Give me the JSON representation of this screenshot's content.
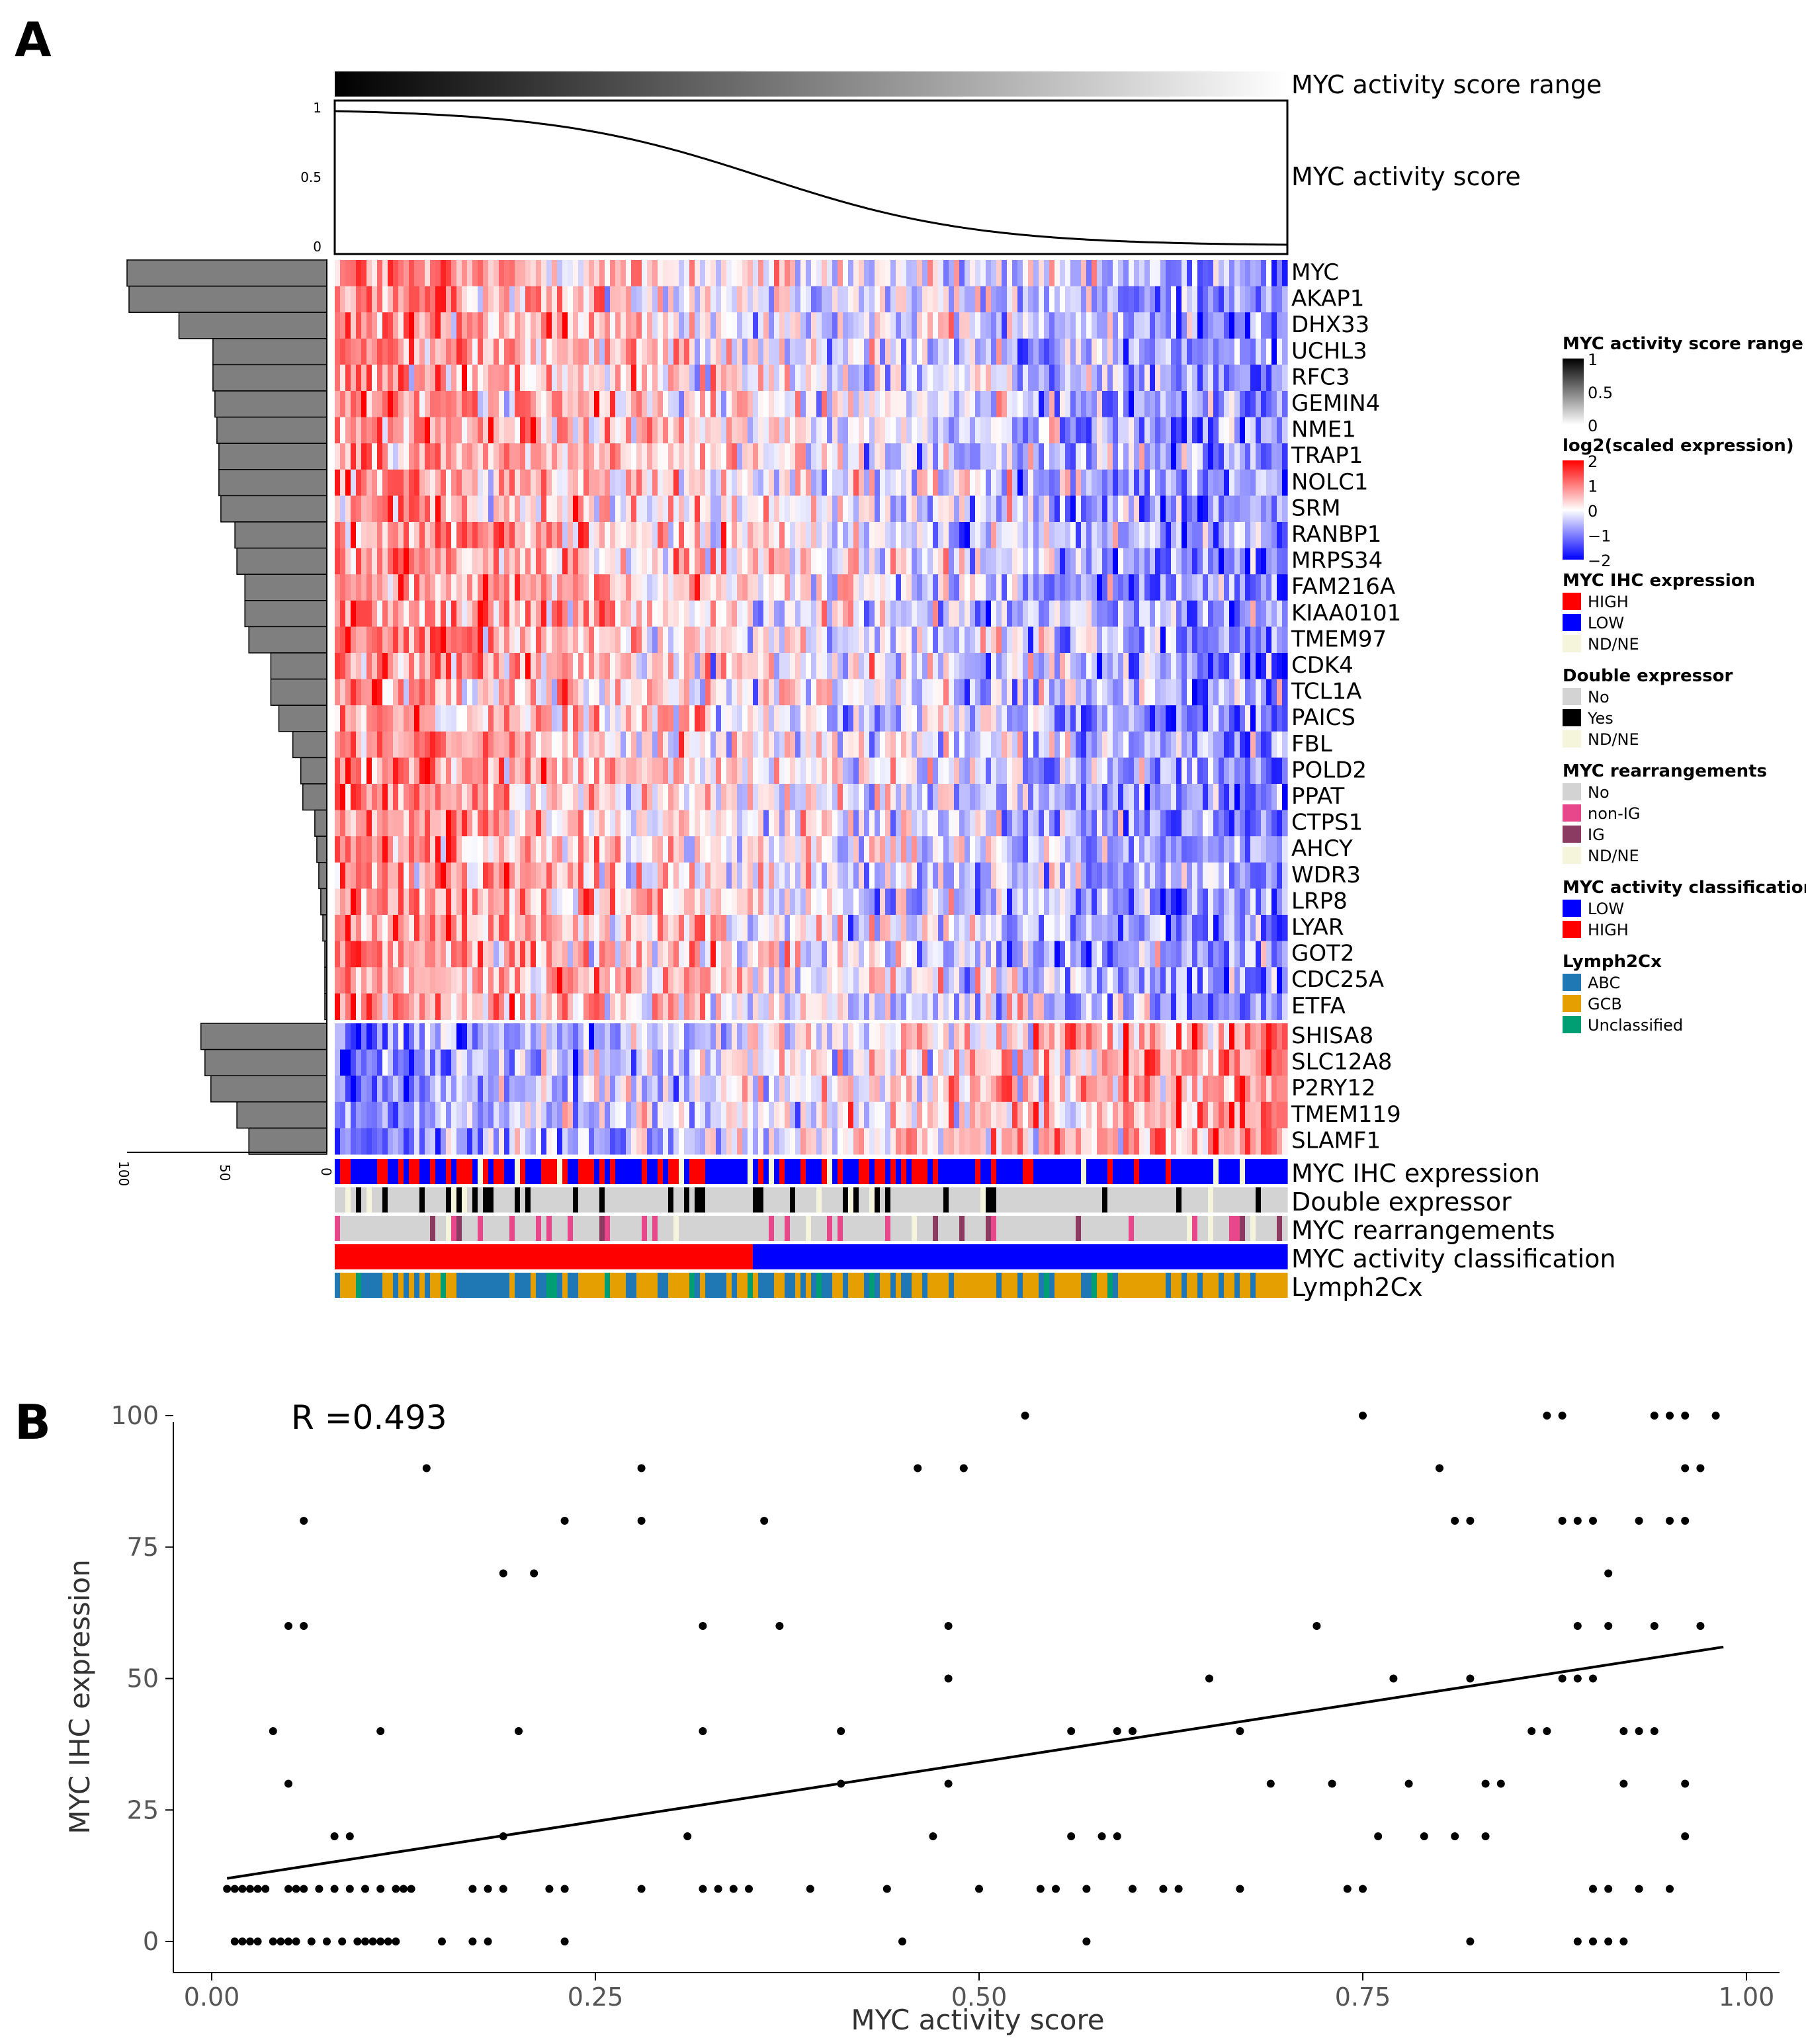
{
  "panels": {
    "a": "A",
    "b": "B"
  },
  "top_track": {
    "range_label": "MYC activity score range",
    "score_label": "MYC activity score",
    "ticks": [
      "1",
      "0.5",
      "0"
    ]
  },
  "genes_up": [
    "MYC",
    "AKAP1",
    "DHX33",
    "UCHL3",
    "RFC3",
    "GEMIN4",
    "NME1",
    "TRAP1",
    "NOLC1",
    "SRM",
    "RANBP1",
    "MRPS34",
    "FAM216A",
    "KIAA0101",
    "TMEM97",
    "CDK4",
    "TCL1A",
    "PAICS",
    "FBL",
    "POLD2",
    "PPAT",
    "CTPS1",
    "AHCY",
    "WDR3",
    "LRP8",
    "LYAR",
    "GOT2",
    "CDC25A",
    "ETFA"
  ],
  "genes_down": [
    "SHISA8",
    "SLC12A8",
    "P2RY12",
    "TMEM119",
    "SLAMF1"
  ],
  "weights_up": [
    100,
    99,
    74,
    57,
    57,
    56,
    55,
    54,
    54,
    53,
    46,
    45,
    41,
    41,
    39,
    28,
    28,
    24,
    17,
    13,
    12,
    6,
    5,
    4,
    3,
    2,
    1,
    1,
    1
  ],
  "weights_down": [
    63,
    61,
    58,
    45,
    39
  ],
  "bar_axis_ticks": [
    "100",
    "50",
    "0"
  ],
  "annotation_tracks": [
    "MYC IHC expression",
    "Double expressor",
    "MYC rearrangements",
    "MYC activity classification",
    "Lymph2Cx"
  ],
  "legend": {
    "groups": [
      {
        "title": "MYC activity score range",
        "type": "gradient",
        "colors": [
          "#000000",
          "#ffffff"
        ],
        "ticks": [
          "1",
          "0.5",
          "0"
        ]
      },
      {
        "title": "log2(scaled expression)",
        "type": "gradient",
        "colors": [
          "#ff0000",
          "#ffffff",
          "#0000ff"
        ],
        "ticks": [
          "2",
          "1",
          "0",
          "−1",
          "−2"
        ]
      },
      {
        "title": "MYC IHC expression",
        "type": "keys",
        "items": [
          {
            "label": "HIGH",
            "color": "#ff0000"
          },
          {
            "label": "LOW",
            "color": "#0000ff"
          },
          {
            "label": "ND/NE",
            "color": "#f5f5dc"
          }
        ]
      },
      {
        "title": "Double expressor",
        "type": "keys",
        "items": [
          {
            "label": "No",
            "color": "#d3d3d3"
          },
          {
            "label": "Yes",
            "color": "#000000"
          },
          {
            "label": "ND/NE",
            "color": "#f5f5dc"
          }
        ]
      },
      {
        "title": "MYC rearrangements",
        "type": "keys",
        "items": [
          {
            "label": "No",
            "color": "#d3d3d3"
          },
          {
            "label": "non-IG",
            "color": "#e8478c"
          },
          {
            "label": "IG",
            "color": "#8b3a62"
          },
          {
            "label": "ND/NE",
            "color": "#f5f5dc"
          }
        ]
      },
      {
        "title": "MYC activity classification",
        "type": "keys",
        "items": [
          {
            "label": "LOW",
            "color": "#0000ff"
          },
          {
            "label": "HIGH",
            "color": "#ff0000"
          }
        ]
      },
      {
        "title": "Lymph2Cx",
        "type": "keys",
        "items": [
          {
            "label": "ABC",
            "color": "#1f77b4"
          },
          {
            "label": "GCB",
            "color": "#e69f00"
          },
          {
            "label": "Unclassified",
            "color": "#009e73"
          }
        ]
      }
    ]
  },
  "chart_data": {
    "type": "scatter",
    "annotation": "R =0.493",
    "xlabel": "MYC activity score",
    "ylabel": "MYC IHC expression",
    "xlim": [
      0,
      1
    ],
    "ylim": [
      0,
      100
    ],
    "x_ticks": [
      "0.00",
      "0.25",
      "0.50",
      "0.75",
      "1.00"
    ],
    "y_ticks": [
      "0",
      "25",
      "50",
      "75",
      "100"
    ],
    "fit_line": {
      "x": [
        0.01,
        0.985
      ],
      "y": [
        12,
        56
      ]
    },
    "points": [
      [
        0.015,
        0
      ],
      [
        0.02,
        0
      ],
      [
        0.025,
        0
      ],
      [
        0.03,
        0
      ],
      [
        0.04,
        0
      ],
      [
        0.045,
        0
      ],
      [
        0.05,
        0
      ],
      [
        0.055,
        0
      ],
      [
        0.065,
        0
      ],
      [
        0.075,
        0
      ],
      [
        0.085,
        0
      ],
      [
        0.095,
        0
      ],
      [
        0.1,
        0
      ],
      [
        0.105,
        0
      ],
      [
        0.11,
        0
      ],
      [
        0.115,
        0
      ],
      [
        0.12,
        0
      ],
      [
        0.15,
        0
      ],
      [
        0.17,
        0
      ],
      [
        0.18,
        0
      ],
      [
        0.23,
        0
      ],
      [
        0.45,
        0
      ],
      [
        0.57,
        0
      ],
      [
        0.82,
        0
      ],
      [
        0.89,
        0
      ],
      [
        0.9,
        0
      ],
      [
        0.91,
        0
      ],
      [
        0.92,
        0
      ],
      [
        0.01,
        10
      ],
      [
        0.015,
        10
      ],
      [
        0.02,
        10
      ],
      [
        0.025,
        10
      ],
      [
        0.03,
        10
      ],
      [
        0.035,
        10
      ],
      [
        0.05,
        10
      ],
      [
        0.055,
        10
      ],
      [
        0.06,
        10
      ],
      [
        0.07,
        10
      ],
      [
        0.08,
        10
      ],
      [
        0.09,
        10
      ],
      [
        0.1,
        10
      ],
      [
        0.11,
        10
      ],
      [
        0.12,
        10
      ],
      [
        0.125,
        10
      ],
      [
        0.13,
        10
      ],
      [
        0.17,
        10
      ],
      [
        0.18,
        10
      ],
      [
        0.19,
        10
      ],
      [
        0.22,
        10
      ],
      [
        0.23,
        10
      ],
      [
        0.28,
        10
      ],
      [
        0.32,
        10
      ],
      [
        0.33,
        10
      ],
      [
        0.34,
        10
      ],
      [
        0.35,
        10
      ],
      [
        0.39,
        10
      ],
      [
        0.44,
        10
      ],
      [
        0.5,
        10
      ],
      [
        0.54,
        10
      ],
      [
        0.55,
        10
      ],
      [
        0.57,
        10
      ],
      [
        0.6,
        10
      ],
      [
        0.62,
        10
      ],
      [
        0.63,
        10
      ],
      [
        0.67,
        10
      ],
      [
        0.74,
        10
      ],
      [
        0.75,
        10
      ],
      [
        0.9,
        10
      ],
      [
        0.91,
        10
      ],
      [
        0.93,
        10
      ],
      [
        0.95,
        10
      ],
      [
        0.08,
        20
      ],
      [
        0.09,
        20
      ],
      [
        0.19,
        20
      ],
      [
        0.31,
        20
      ],
      [
        0.47,
        20
      ],
      [
        0.56,
        20
      ],
      [
        0.58,
        20
      ],
      [
        0.59,
        20
      ],
      [
        0.76,
        20
      ],
      [
        0.79,
        20
      ],
      [
        0.81,
        20
      ],
      [
        0.83,
        20
      ],
      [
        0.96,
        20
      ],
      [
        0.05,
        30
      ],
      [
        0.41,
        30
      ],
      [
        0.48,
        30
      ],
      [
        0.69,
        30
      ],
      [
        0.73,
        30
      ],
      [
        0.78,
        30
      ],
      [
        0.83,
        30
      ],
      [
        0.84,
        30
      ],
      [
        0.92,
        30
      ],
      [
        0.96,
        30
      ],
      [
        0.04,
        40
      ],
      [
        0.11,
        40
      ],
      [
        0.2,
        40
      ],
      [
        0.32,
        40
      ],
      [
        0.41,
        40
      ],
      [
        0.56,
        40
      ],
      [
        0.59,
        40
      ],
      [
        0.6,
        40
      ],
      [
        0.67,
        40
      ],
      [
        0.86,
        40
      ],
      [
        0.87,
        40
      ],
      [
        0.92,
        40
      ],
      [
        0.93,
        40
      ],
      [
        0.94,
        40
      ],
      [
        0.48,
        50
      ],
      [
        0.65,
        50
      ],
      [
        0.77,
        50
      ],
      [
        0.82,
        50
      ],
      [
        0.88,
        50
      ],
      [
        0.89,
        50
      ],
      [
        0.9,
        50
      ],
      [
        0.05,
        60
      ],
      [
        0.06,
        60
      ],
      [
        0.32,
        60
      ],
      [
        0.37,
        60
      ],
      [
        0.48,
        60
      ],
      [
        0.72,
        60
      ],
      [
        0.89,
        60
      ],
      [
        0.91,
        60
      ],
      [
        0.94,
        60
      ],
      [
        0.97,
        60
      ],
      [
        0.19,
        70
      ],
      [
        0.21,
        70
      ],
      [
        0.91,
        70
      ],
      [
        0.06,
        80
      ],
      [
        0.23,
        80
      ],
      [
        0.28,
        80
      ],
      [
        0.36,
        80
      ],
      [
        0.81,
        80
      ],
      [
        0.82,
        80
      ],
      [
        0.88,
        80
      ],
      [
        0.89,
        80
      ],
      [
        0.9,
        80
      ],
      [
        0.93,
        80
      ],
      [
        0.95,
        80
      ],
      [
        0.96,
        80
      ],
      [
        0.14,
        90
      ],
      [
        0.28,
        90
      ],
      [
        0.46,
        90
      ],
      [
        0.49,
        90
      ],
      [
        0.8,
        90
      ],
      [
        0.96,
        90
      ],
      [
        0.97,
        90
      ],
      [
        0.53,
        100
      ],
      [
        0.75,
        100
      ],
      [
        0.87,
        100
      ],
      [
        0.88,
        100
      ],
      [
        0.94,
        100
      ],
      [
        0.95,
        100
      ],
      [
        0.96,
        100
      ],
      [
        0.98,
        100
      ]
    ]
  }
}
